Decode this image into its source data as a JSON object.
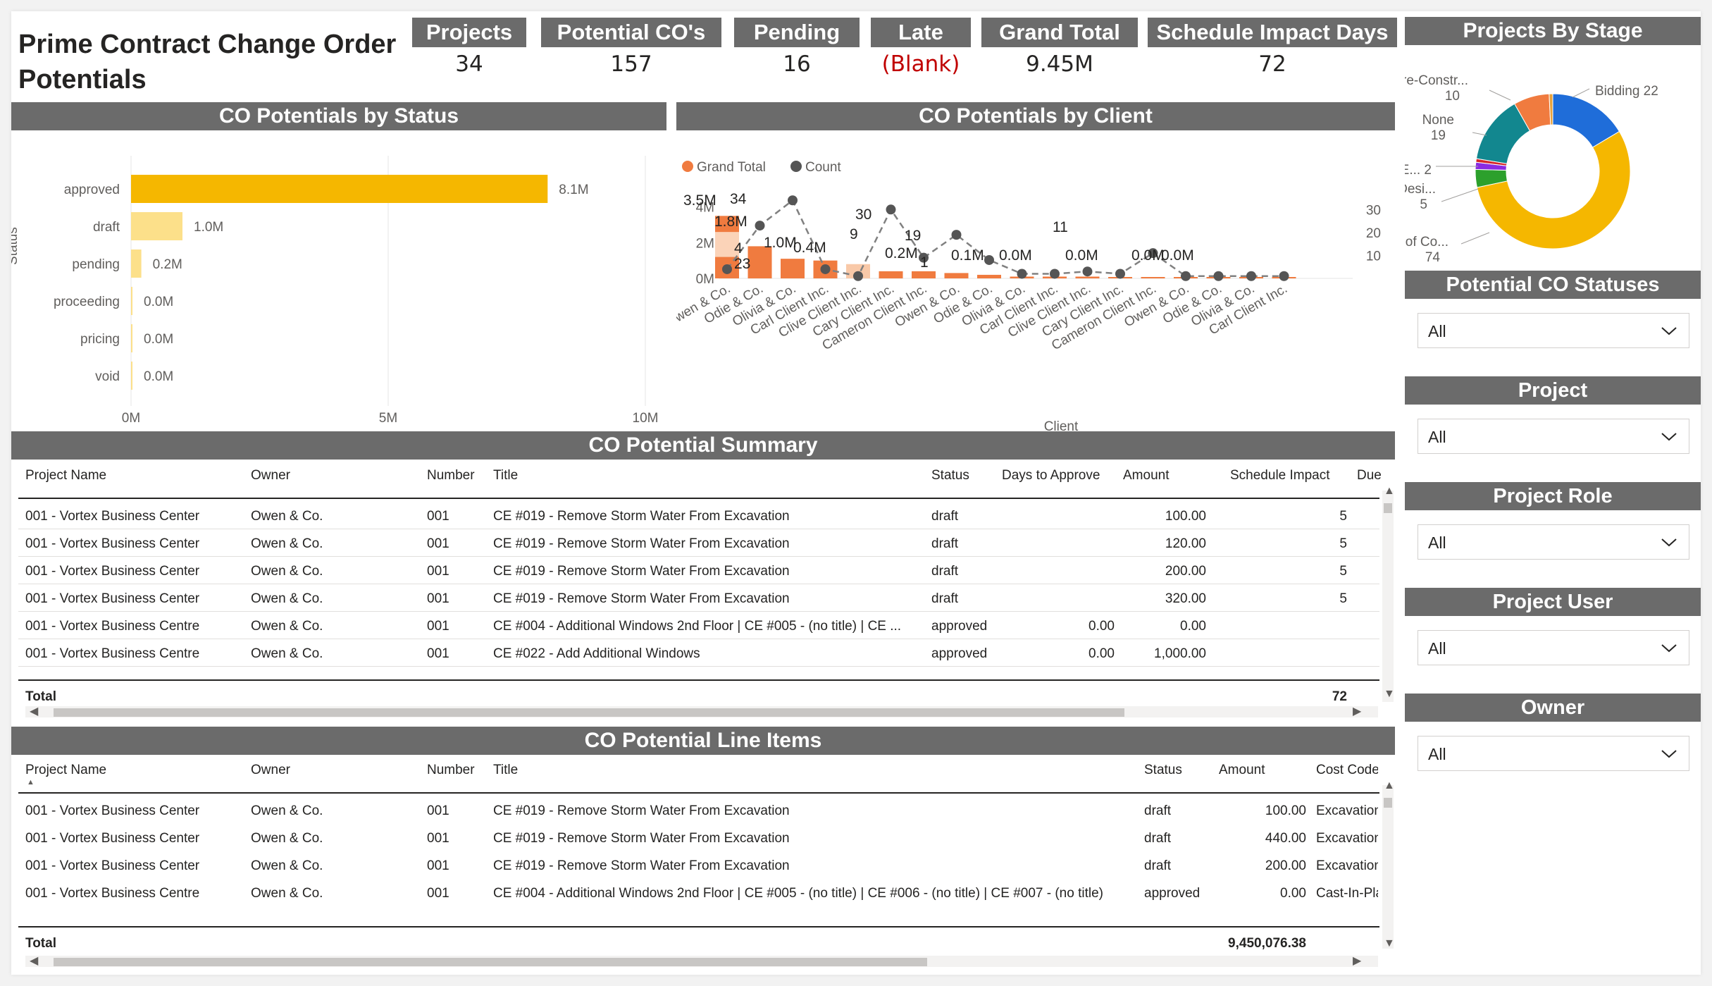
{
  "title": "Prime Contract Change Order Potentials",
  "kpis": [
    {
      "label": "Projects",
      "value": "34"
    },
    {
      "label": "Potential CO's",
      "value": "157"
    },
    {
      "label": "Pending",
      "value": "16"
    },
    {
      "label": "Late",
      "value": "(Blank)",
      "color": "#c00000"
    },
    {
      "label": "Grand Total",
      "value": "9.45M"
    },
    {
      "label": "Schedule Impact Days",
      "value": "72"
    }
  ],
  "status_chart": {
    "header": "CO Potentials by Status",
    "ylabel": "Status",
    "ticks": [
      "0M",
      "5M",
      "10M"
    ]
  },
  "client_chart": {
    "header": "CO Potentials by Client",
    "xlabel": "Client",
    "legend": [
      "Grand Total",
      "Count"
    ],
    "left_ticks": [
      "4M",
      "2M",
      "0M"
    ],
    "right_ticks": [
      "30",
      "20",
      "10"
    ]
  },
  "stage_chart": {
    "header": "Projects By Stage"
  },
  "chart_data": [
    {
      "type": "bar",
      "orientation": "horizontal",
      "ylabel": "Status",
      "categories": [
        "approved",
        "draft",
        "pending",
        "proceeding",
        "pricing",
        "void"
      ],
      "values": [
        8.1,
        1.0,
        0.2,
        0.0,
        0.0,
        0.0
      ],
      "value_labels": [
        "8.1M",
        "1.0M",
        "0.2M",
        "0.0M",
        "0.0M",
        "0.0M"
      ],
      "units": "M",
      "xlim": [
        0,
        10
      ],
      "colors": [
        "#f5b700",
        "#fce08a",
        "#fce08a",
        "#fce08a",
        "#fce08a",
        "#fce08a"
      ]
    },
    {
      "type": "bar",
      "combo": "bar+line",
      "xlabel": "Client",
      "categories": [
        "Owen & Co.",
        "Odie & Co.",
        "Olivia & Co.",
        "Carl Client Inc.",
        "Clive Client Inc.",
        "Cary Client Inc.",
        "Cameron Client Inc.",
        "Owen & Co.",
        "Odie & Co.",
        "Olivia & Co.",
        "Carl Client Inc.",
        "Clive Client Inc.",
        "Cary Client Inc.",
        "Cameron Client Inc.",
        "Owen & Co.",
        "Odie & Co.",
        "Olivia & Co.",
        "Carl Client Inc."
      ],
      "series": [
        {
          "name": "Grand Total",
          "values": [
            3.5,
            1.8,
            1.1,
            1.0,
            0.8,
            0.4,
            0.4,
            0.3,
            0.2,
            0.1,
            0.1,
            0.1,
            0.0,
            0.0,
            0.0,
            0.0,
            0.0,
            0.0
          ],
          "color": "#f07b3f"
        },
        {
          "name": "Count",
          "values": [
            4,
            23,
            34,
            4,
            1,
            30,
            9,
            19,
            8,
            2,
            2,
            3,
            2,
            11,
            1,
            1,
            1,
            1
          ],
          "color": "#555555"
        }
      ],
      "data_labels": [
        {
          "text": "3.5M"
        },
        {
          "text": "1.8M"
        },
        {
          "text": "34"
        },
        {
          "text": "1.0M"
        },
        {
          "text": "0.4M"
        },
        {
          "text": "30"
        },
        {
          "text": "9"
        },
        {
          "text": "0.2M"
        },
        {
          "text": "19"
        },
        {
          "text": "0.1M"
        },
        {
          "text": "0.0M"
        },
        {
          "text": "11"
        },
        {
          "text": "0.0M"
        },
        {
          "text": "0.0M"
        },
        {
          "text": "0.0M"
        },
        {
          "text": "4"
        },
        {
          "text": "23"
        },
        {
          "text": "1"
        }
      ],
      "ylim_left": [
        0,
        4.5
      ],
      "ylim_right": [
        0,
        35
      ]
    },
    {
      "type": "pie",
      "variant": "donut",
      "title": "Projects By Stage",
      "slices": [
        {
          "label": "Bidding",
          "value": 22,
          "color": "#1f6dd9"
        },
        {
          "label": "Course of Co...",
          "value": 74,
          "color": "#f5b700"
        },
        {
          "label": "Desi...",
          "value": 5,
          "color": "#2ca02c"
        },
        {
          "label": "E...",
          "value": 2,
          "color": "#8a2be2"
        },
        {
          "label": "other",
          "value": 1,
          "color": "#d62728"
        },
        {
          "label": "None",
          "value": 19,
          "color": "#12878f"
        },
        {
          "label": "Pre-Constr...",
          "value": 10,
          "color": "#f07b3f"
        },
        {
          "label": "other2",
          "value": 1,
          "color": "#e8a23a"
        }
      ],
      "outer_labels": [
        {
          "name": "Bidding",
          "value": "22"
        },
        {
          "name": "Pre-Constr...",
          "value": "10"
        },
        {
          "name": "None",
          "value": "19"
        },
        {
          "name": "E...",
          "value": "2"
        },
        {
          "name": "Desi...",
          "value": "5"
        },
        {
          "name": "Course of Co...",
          "value": "74"
        }
      ]
    }
  ],
  "summary": {
    "header": "CO Potential Summary",
    "columns": [
      "Project Name",
      "Owner",
      "Number",
      "Title",
      "Status",
      "Days to Approve",
      "Amount",
      "Schedule Impact",
      "Due"
    ],
    "rows": [
      [
        "001 - Vortex Business Center",
        "Owen & Co.",
        "001",
        "CE #019 - Remove Storm Water From Excavation",
        "draft",
        "",
        "100.00",
        "5",
        ""
      ],
      [
        "001 - Vortex Business Center",
        "Owen & Co.",
        "001",
        "CE #019 - Remove Storm Water From Excavation",
        "draft",
        "",
        "120.00",
        "5",
        ""
      ],
      [
        "001 - Vortex Business Center",
        "Owen & Co.",
        "001",
        "CE #019 - Remove Storm Water From Excavation",
        "draft",
        "",
        "200.00",
        "5",
        ""
      ],
      [
        "001 - Vortex Business Center",
        "Owen & Co.",
        "001",
        "CE #019 - Remove Storm Water From Excavation",
        "draft",
        "",
        "320.00",
        "5",
        ""
      ],
      [
        "001 - Vortex Business Centre",
        "Owen & Co.",
        "001",
        "CE #004 - Additional Windows 2nd Floor | CE #005 - (no title) | CE ...",
        "approved",
        "0.00",
        "0.00",
        "",
        ""
      ],
      [
        "001 - Vortex Business Centre",
        "Owen & Co.",
        "001",
        "CE #022 - Add Additional Windows",
        "approved",
        "0.00",
        "1,000.00",
        "",
        ""
      ]
    ],
    "total_label": "Total",
    "total_schedule": "72"
  },
  "line_items": {
    "header": "CO Potential Line Items",
    "columns": [
      "Project Name",
      "Owner",
      "Number",
      "Title",
      "Status",
      "Amount",
      "Cost Code"
    ],
    "rows": [
      [
        "001 - Vortex Business Center",
        "Owen & Co.",
        "001",
        "CE #019 - Remove Storm Water From Excavation",
        "draft",
        "100.00",
        "Excavation"
      ],
      [
        "001 - Vortex Business Center",
        "Owen & Co.",
        "001",
        "CE #019 - Remove Storm Water From Excavation",
        "draft",
        "440.00",
        "Excavation"
      ],
      [
        "001 - Vortex Business Center",
        "Owen & Co.",
        "001",
        "CE #019 - Remove Storm Water From Excavation",
        "draft",
        "200.00",
        "Excavation"
      ],
      [
        "001 - Vortex Business Centre",
        "Owen & Co.",
        "001",
        "CE #004 - Additional Windows 2nd Floor | CE #005 - (no title) | CE #006 - (no title) | CE #007 - (no title)",
        "approved",
        "0.00",
        "Cast-In-Place"
      ]
    ],
    "total_label": "Total",
    "total_amount": "9,450,076.38"
  },
  "slicers": [
    {
      "label": "Potential CO Statuses",
      "value": "All"
    },
    {
      "label": "Project",
      "value": "All"
    },
    {
      "label": "Project Role",
      "value": "All"
    },
    {
      "label": "Project User",
      "value": "All"
    },
    {
      "label": "Owner",
      "value": "All"
    }
  ]
}
